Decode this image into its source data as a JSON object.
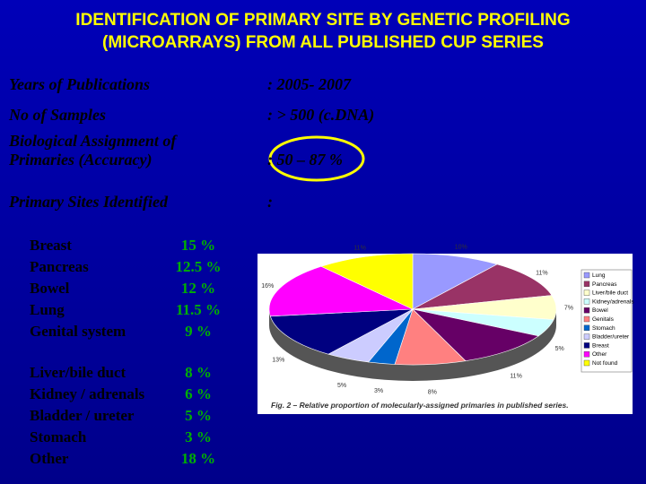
{
  "title": [
    "IDENTIFICATION  OF  PRIMARY  SITE  BY  GENETIC  PROFILING",
    "(MICROARRAYS)  FROM  ALL  PUBLISHED  CUP  SERIES"
  ],
  "info": [
    {
      "label": [
        "Years   of   Publications"
      ],
      "value": ":  2005- 2007"
    },
    {
      "label": [
        "No  of  Samples"
      ],
      "value": ":  > 500  (c.DNA)"
    },
    {
      "label": [
        "Biological  Assignment  of",
        "Primaries (Accuracy)"
      ],
      "value": ": 50 – 87 %"
    },
    {
      "label": [
        "Primary  Sites  Identified"
      ],
      "value": ":"
    }
  ],
  "sites": [
    {
      "name": "Breast",
      "percent": "15 %"
    },
    {
      "name": "Pancreas",
      "percent": "12.5 %"
    },
    {
      "name": "Bowel",
      "percent": "12 %"
    },
    {
      "name": "Lung",
      "percent": "11.5 %"
    },
    {
      "name": "Genital  system",
      "percent": "9 %"
    },
    {
      "name": "Liver/bile duct",
      "percent": "8 %"
    },
    {
      "name": "Kidney / adrenals",
      "percent": "6 %"
    },
    {
      "name": "Bladder / ureter",
      "percent": "5 %"
    },
    {
      "name": "Stomach",
      "percent": "3 %"
    },
    {
      "name": "Other",
      "percent": "18 %"
    }
  ],
  "figure": {
    "type": "pie",
    "categories": [
      "Lung",
      "Pancreas",
      "Liver/bile duct",
      "Kidney/adrenals",
      "Bowel",
      "Genitals",
      "Stomach",
      "Bladder/ureter",
      "Breast",
      "Other",
      "Not found"
    ],
    "values": [
      10,
      11,
      7,
      5,
      11,
      8,
      3,
      5,
      13,
      16,
      11
    ],
    "value_labels": [
      "10%",
      "11%",
      "7%",
      "5%",
      "11%",
      "8%",
      "3%",
      "5%",
      "13%",
      "16%",
      "11%"
    ],
    "colors": [
      "#9999ff",
      "#993366",
      "#ffffcc",
      "#ccffff",
      "#660066",
      "#ff8080",
      "#0066cc",
      "#ccccff",
      "#000080",
      "#ff00ff",
      "#ffff00"
    ],
    "caption": "Fig. 2 – Relative proportion of molecularly-assigned primaries in published series."
  }
}
